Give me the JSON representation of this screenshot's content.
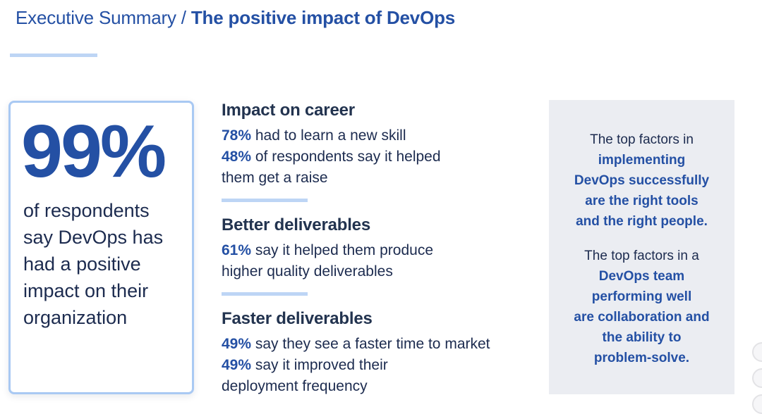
{
  "title": {
    "regular": "Executive Summary / ",
    "bold": "The positive impact of DevOps"
  },
  "colors": {
    "accent_blue": "#2450a4",
    "navy_text": "#1c2b4f",
    "light_blue_divider": "#bdd5f5",
    "card_border_blue": "#a9c9f3",
    "panel_gray": "#ebedf2"
  },
  "stat_card": {
    "big_stat": "99%",
    "description_lines": [
      "of respondents",
      "say DevOps has",
      "had a positive",
      "impact on their",
      "organization"
    ]
  },
  "sections": [
    {
      "heading": "Impact on career",
      "lines": [
        {
          "highlight": "78%",
          "text": " had to learn a new skill"
        },
        {
          "highlight": "48%",
          "text": " of respondents say it helped"
        },
        {
          "highlight": "",
          "text": "them get a raise"
        }
      ]
    },
    {
      "heading": "Better deliverables",
      "lines": [
        {
          "highlight": "61%",
          "text": " say it helped them produce"
        },
        {
          "highlight": "",
          "text": "higher quality deliverables"
        }
      ]
    },
    {
      "heading": "Faster deliverables",
      "lines": [
        {
          "highlight": "49%",
          "text": " say they see a faster time to market"
        },
        {
          "highlight": "49%",
          "text": " say it improved their"
        },
        {
          "highlight": "",
          "text": "deployment frequency"
        }
      ]
    }
  ],
  "callout_panel": {
    "paragraphs": [
      {
        "plain_lines": [
          "The top factors in"
        ],
        "bold_lines": [
          "implementing",
          "DevOps successfully",
          "are the right tools",
          "and the right people."
        ]
      },
      {
        "plain_lines": [
          "The top factors in a"
        ],
        "bold_lines": [
          "DevOps team",
          "performing well",
          "are collaboration and",
          "the ability to",
          "problem-solve."
        ]
      }
    ]
  }
}
